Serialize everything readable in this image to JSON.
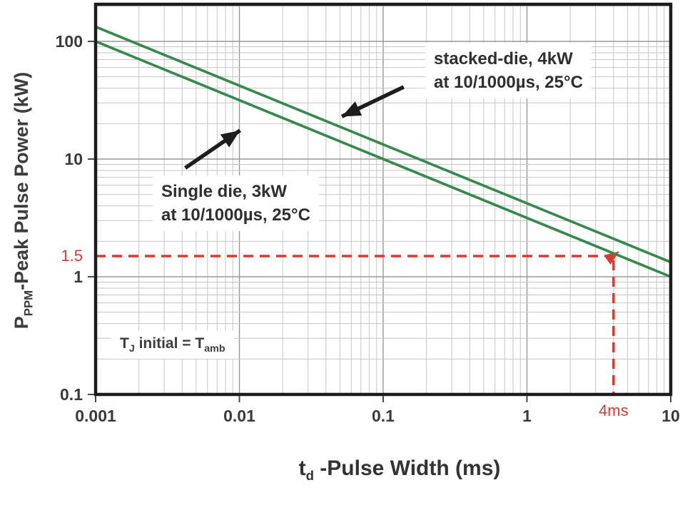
{
  "chart_data": {
    "type": "line",
    "x_axis": {
      "label_parts": {
        "base": "t",
        "sub": "d",
        "rest": " -Pulse Width (ms)"
      },
      "scale": "log",
      "range": [
        0.001,
        10
      ],
      "ticks": [
        {
          "v": 0.001,
          "label": "0.001"
        },
        {
          "v": 0.01,
          "label": "0.01"
        },
        {
          "v": 0.1,
          "label": "0.1"
        },
        {
          "v": 1,
          "label": "1"
        },
        {
          "v": 10,
          "label": "10"
        }
      ]
    },
    "y_axis": {
      "label_parts": {
        "base": "P",
        "sub": "PPM",
        "rest": "-Peak Pulse Power (kW)"
      },
      "scale": "log",
      "range": [
        0.1,
        206
      ],
      "ticks": [
        {
          "v": 0.1,
          "label": "0.1"
        },
        {
          "v": 1,
          "label": "1"
        },
        {
          "v": 10,
          "label": "10"
        },
        {
          "v": 100,
          "label": "100"
        }
      ]
    },
    "grid": {
      "major": true,
      "minor": true
    },
    "legend_position": "none",
    "series": [
      {
        "name": "stacked-die, 4kW at 10/1000µs, 25°C",
        "points": [
          [
            0.001,
            133
          ],
          [
            10,
            1.33
          ]
        ]
      },
      {
        "name": "Single die, 3kW at 10/1000µs, 25°C",
        "points": [
          [
            0.001,
            100
          ],
          [
            10,
            1.0
          ]
        ]
      }
    ],
    "reference": {
      "pulse_width_ms": 4,
      "power_kw": 1.5,
      "x_label": "4ms",
      "y_label": "1.5"
    }
  },
  "annotations": {
    "stacked": {
      "line1": "stacked-die, 4kW",
      "line2": "at 10/1000µs, 25°C",
      "points_to": "stacked-die line"
    },
    "single": {
      "line1": "Single die, 3kW",
      "line2": "at 10/1000µs, 25°C",
      "points_to": "single-die line"
    },
    "tj": {
      "base1": "T",
      "sub1": "J",
      "mid": " initial = ",
      "base2": "T",
      "sub2": "amb"
    }
  },
  "arrows": [
    {
      "from": [
        0.0042,
        8.4
      ],
      "to": [
        0.0101,
        17.5
      ],
      "points_to": "single-die line"
    },
    {
      "from": [
        0.139,
        41.0
      ],
      "to": [
        0.0516,
        23.0
      ],
      "points_to": "stacked-die line"
    }
  ],
  "colors": {
    "line_green": "#35894b",
    "reference_red": "#d93b32",
    "grid_major": "#989898",
    "grid_minor": "#c6c6c6",
    "frame": "#1c1c1c",
    "tick_text": "#3a3a3a",
    "arrow_black": "#1d1d1d"
  }
}
